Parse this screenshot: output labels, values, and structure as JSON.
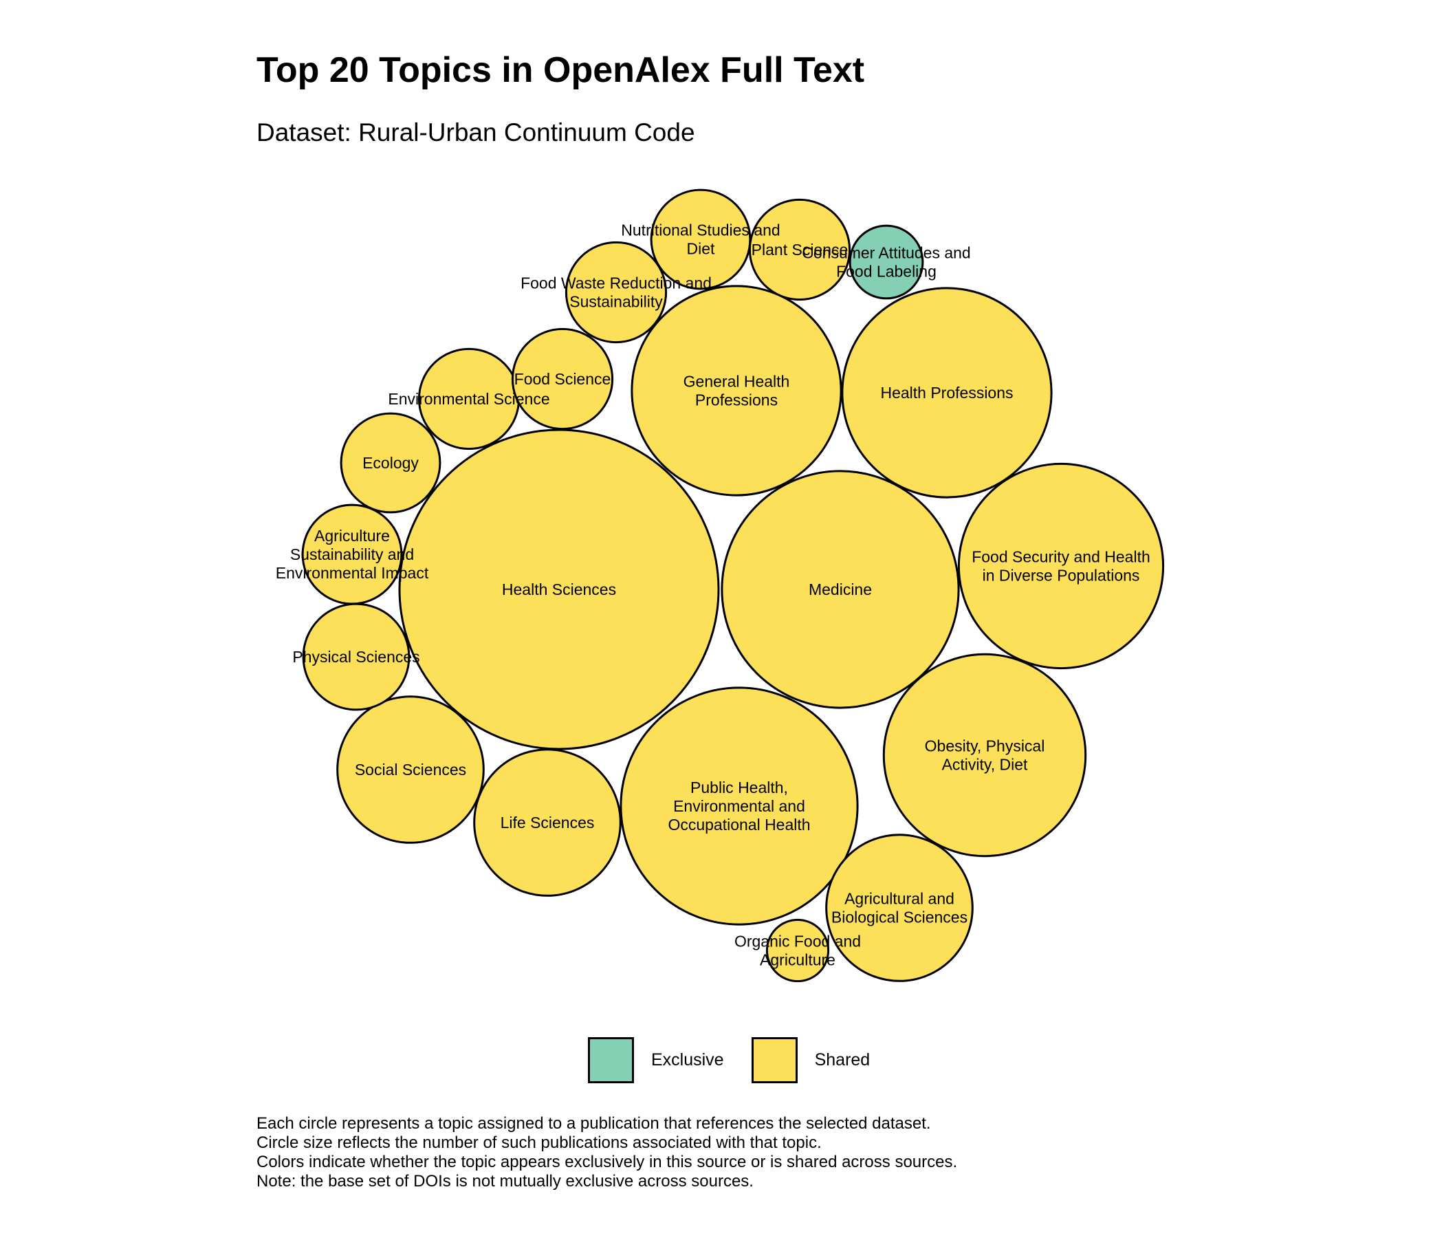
{
  "title": "Top 20 Topics in OpenAlex Full Text",
  "subtitle": "Dataset: Rural-Urban Continuum Code",
  "colors": {
    "Exclusive": "#85CFB4",
    "Shared": "#FCE05A"
  },
  "legend": [
    {
      "key": "Exclusive",
      "label": "Exclusive"
    },
    {
      "key": "Shared",
      "label": "Shared"
    }
  ],
  "caption": [
    "Each circle represents a topic assigned to a publication that references the selected dataset.",
    "Circle size reflects the number of such publications associated with that topic.",
    "Colors indicate whether the topic appears exclusively in this source or is shared across sources.",
    "Note: the base set of DOIs is not mutually exclusive across sources."
  ],
  "chart_data": {
    "type": "bubble",
    "title": "Top 20 Topics in OpenAlex Full Text",
    "subtitle": "Dataset: Rural-Urban Continuum Code",
    "size_variable": "number of publications (relative)",
    "series": [
      {
        "name": "Health Sciences",
        "label": [
          "Health Sciences"
        ],
        "group": "Shared",
        "relative_size": 100
      },
      {
        "name": "Medicine",
        "label": [
          "Medicine"
        ],
        "group": "Shared",
        "relative_size": 55
      },
      {
        "name": "Public Health, Environmental and Occupational Health",
        "label": [
          "Public Health,",
          "Environmental and",
          "Occupational Health"
        ],
        "group": "Shared",
        "relative_size": 55
      },
      {
        "name": "General Health Professions",
        "label": [
          "General Health",
          "Professions"
        ],
        "group": "Shared",
        "relative_size": 43
      },
      {
        "name": "Health Professions",
        "label": [
          "Health Professions"
        ],
        "group": "Shared",
        "relative_size": 43
      },
      {
        "name": "Obesity, Physical Activity, Diet",
        "label": [
          "Obesity, Physical",
          "Activity, Diet"
        ],
        "group": "Shared",
        "relative_size": 40
      },
      {
        "name": "Food Security and Health in Diverse Populations",
        "label": [
          "Food Security and Health",
          "in Diverse Populations"
        ],
        "group": "Shared",
        "relative_size": 41
      },
      {
        "name": "Social Sciences",
        "label": [
          "Social Sciences"
        ],
        "group": "Shared",
        "relative_size": 21
      },
      {
        "name": "Life Sciences",
        "label": [
          "Life Sciences"
        ],
        "group": "Shared",
        "relative_size": 21
      },
      {
        "name": "Agricultural and Biological Sciences",
        "label": [
          "Agricultural and",
          "Biological Sciences"
        ],
        "group": "Shared",
        "relative_size": 21
      },
      {
        "name": "Ecology",
        "label": [
          "Ecology"
        ],
        "group": "Shared",
        "relative_size": 9.6
      },
      {
        "name": "Environmental Science",
        "label": [
          "Environmental Science"
        ],
        "group": "Shared",
        "relative_size": 9.8
      },
      {
        "name": "Food Science",
        "label": [
          "Food Science"
        ],
        "group": "Shared",
        "relative_size": 9.8
      },
      {
        "name": "Food Waste Reduction and Sustainability",
        "label": [
          "Food Waste Reduction and",
          "Sustainability"
        ],
        "group": "Shared",
        "relative_size": 9.8
      },
      {
        "name": "Nutritional Studies and Diet",
        "label": [
          "Nutritional Studies and",
          "Diet"
        ],
        "group": "Shared",
        "relative_size": 9.6
      },
      {
        "name": "Plant Science",
        "label": [
          "Plant Science"
        ],
        "group": "Shared",
        "relative_size": 9.8
      },
      {
        "name": "Consumer Attitudes and Food Labeling",
        "label": [
          "Consumer Attitudes and",
          "Food Labeling"
        ],
        "group": "Exclusive",
        "relative_size": 5.2
      },
      {
        "name": "Agriculture Sustainability and Environmental Impact",
        "label": [
          "Agriculture",
          "Sustainability and",
          "Environmental Impact"
        ],
        "group": "Shared",
        "relative_size": 9.6
      },
      {
        "name": "Physical Sciences",
        "label": [
          "Physical Sciences"
        ],
        "group": "Shared",
        "relative_size": 11
      },
      {
        "name": "Organic Food and Agriculture",
        "label": [
          "Organic Food and",
          "Agriculture"
        ],
        "group": "Shared",
        "relative_size": 3.7
      }
    ]
  }
}
